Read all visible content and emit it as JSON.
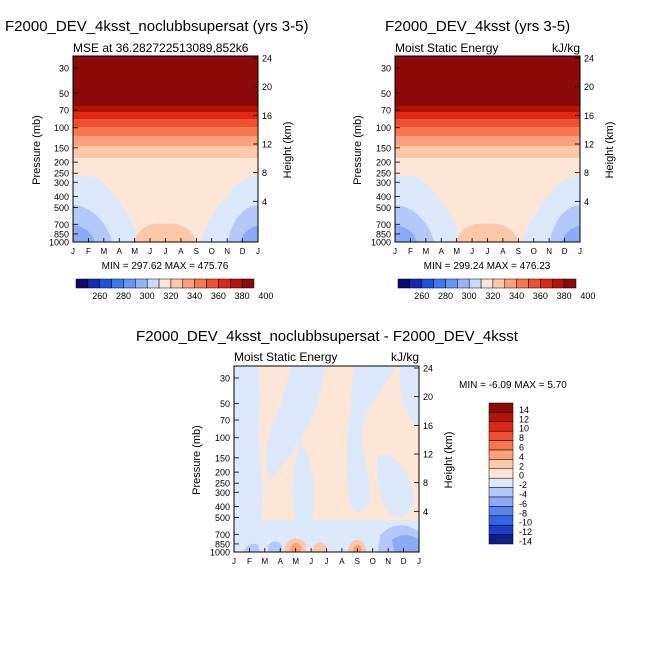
{
  "chart_data": [
    {
      "type": "heatmap",
      "title": "F2000_DEV_4ksst_noclubbsupersat (yrs 3-5)",
      "subtitle_left": "MSE at 36.282722513089,852k6",
      "subtitle_right": "",
      "ylabel": "Pressure (mb)",
      "ylabel_right": "Height (km)",
      "x_ticks": [
        "J",
        "F",
        "M",
        "A",
        "M",
        "J",
        "J",
        "A",
        "S",
        "O",
        "N",
        "D",
        "J"
      ],
      "pressure_ticks": [
        "30",
        "50",
        "70",
        "100",
        "150",
        "200",
        "250",
        "300",
        "400",
        "500",
        "700",
        "850",
        "1000"
      ],
      "height_ticks": [
        "4",
        "8",
        "12",
        "16",
        "20",
        "24"
      ],
      "min": "297.62",
      "max": "475.76",
      "minmax_text": "MIN = 297.62  MAX = 475.76",
      "colorbar_labels": [
        "260",
        "280",
        "300",
        "320",
        "340",
        "360",
        "380",
        "400"
      ]
    },
    {
      "type": "heatmap",
      "title": "F2000_DEV_4ksst (yrs 3-5)",
      "subtitle_left": "Moist Static Energy",
      "subtitle_right": "kJ/kg",
      "ylabel": "Pressure (mb)",
      "ylabel_right": "Height (km)",
      "x_ticks": [
        "J",
        "F",
        "M",
        "A",
        "M",
        "J",
        "J",
        "A",
        "S",
        "O",
        "N",
        "D",
        "J"
      ],
      "pressure_ticks": [
        "30",
        "50",
        "70",
        "100",
        "150",
        "200",
        "250",
        "300",
        "400",
        "500",
        "700",
        "850",
        "1000"
      ],
      "height_ticks": [
        "4",
        "8",
        "12",
        "16",
        "20",
        "24"
      ],
      "min": "299.24",
      "max": "476.23",
      "minmax_text": "MIN = 299.24  MAX = 476.23",
      "colorbar_labels": [
        "260",
        "280",
        "300",
        "320",
        "340",
        "360",
        "380",
        "400"
      ]
    },
    {
      "type": "heatmap",
      "title": "F2000_DEV_4ksst_noclubbsupersat - F2000_DEV_4ksst",
      "subtitle_left": "Moist Static Energy",
      "subtitle_right": "kJ/kg",
      "ylabel": "Pressure (mb)",
      "ylabel_right": "Height (km)",
      "x_ticks": [
        "J",
        "F",
        "M",
        "A",
        "M",
        "J",
        "J",
        "A",
        "S",
        "O",
        "N",
        "D",
        "J"
      ],
      "pressure_ticks": [
        "30",
        "50",
        "70",
        "100",
        "150",
        "200",
        "250",
        "300",
        "400",
        "500",
        "700",
        "850",
        "1000"
      ],
      "height_ticks": [
        "4",
        "8",
        "12",
        "16",
        "20",
        "24"
      ],
      "min": "-6.09",
      "max": "5.70",
      "minmax_text": "MIN =  -6.09  MAX =   5.70",
      "colorbar_labels": [
        "14",
        "12",
        "10",
        "8",
        "6",
        "4",
        "2",
        "0",
        "-2",
        "-4",
        "-6",
        "-8",
        "-10",
        "-12",
        "-14"
      ]
    }
  ],
  "colors": {
    "mse_scale": [
      "#0a0a6e",
      "#1428b4",
      "#1e50dc",
      "#3c78f0",
      "#6496f5",
      "#96b4fa",
      "#c8dcfd",
      "#fde6d6",
      "#fcc8a8",
      "#fba07a",
      "#f77850",
      "#ef5030",
      "#dc2814",
      "#b41408",
      "#8c0a0a"
    ],
    "diff_scale": [
      "#8c0a0a",
      "#b41408",
      "#dc2814",
      "#ef5030",
      "#f77850",
      "#fba07a",
      "#fcc8a8",
      "#fde6d6",
      "#dce8fc",
      "#b4c8fa",
      "#8caaf6",
      "#5a82f0",
      "#3264e6",
      "#1e3cc8",
      "#0a1e8c"
    ],
    "top": "#8c0a0a",
    "mid_peach": "#fde6d6",
    "light_blue": "#dce8fc"
  }
}
